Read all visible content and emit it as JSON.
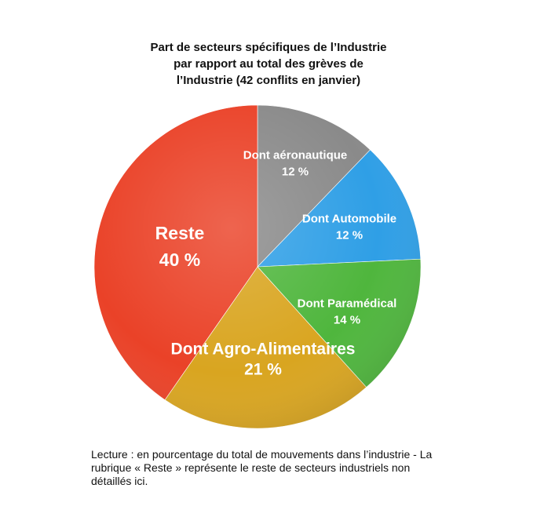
{
  "chart_data": {
    "type": "pie",
    "title_lines": [
      "Part de secteurs spécifiques de l’Industrie",
      "par rapport au total des grèves de",
      "l’Industrie (42 conflits en janvier)"
    ],
    "slices": [
      {
        "label": "Dont aéronautique",
        "value": 12,
        "value_label": "12 %",
        "color": "#8a8a8a"
      },
      {
        "label": "Dont Automobile",
        "value": 12,
        "value_label": "12 %",
        "color": "#2f9fe6"
      },
      {
        "label": "Dont Paramédical",
        "value": 14,
        "value_label": "14 %",
        "color": "#4fb63d"
      },
      {
        "label": "Dont Agro-Alimentaires",
        "value": 21,
        "value_label": "21 %",
        "color": "#d9a520"
      },
      {
        "label": "Reste",
        "value": 40,
        "value_label": "40 %",
        "color": "#ea4228"
      }
    ]
  },
  "caption_lines": [
    "Lecture : en pourcentage du total de mouvements dans l’industrie - La",
    "rubrique « Reste » représente le reste de secteurs industriels non",
    "détaillés ici."
  ]
}
